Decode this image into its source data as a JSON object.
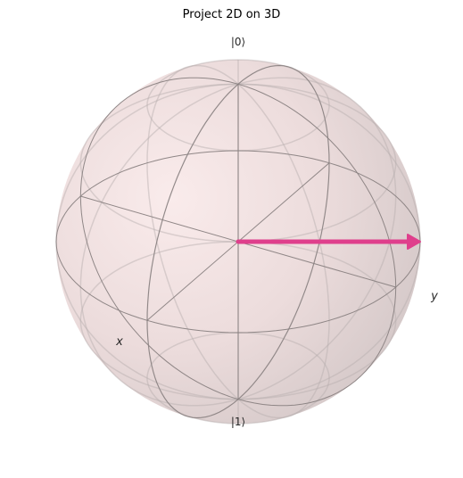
{
  "colors": {
    "sphere_light": "#f9e9e9",
    "sphere_mid": "#ead8d8",
    "sphere_dark": "#cfc2c2",
    "grid_back": "#b5acac",
    "frame": "#8a8282",
    "vector": "#df3f8c"
  },
  "chart_data": {
    "type": "bloch-sphere",
    "title": "Project 2D on 3D",
    "labels": {
      "top": "|0⟩",
      "bottom": "|1⟩",
      "x": "x",
      "y": "y"
    },
    "view": {
      "azimuth_deg": -60,
      "elevation_deg": 30
    },
    "vectors": [
      {
        "name": "state",
        "x": 0.5,
        "y": -0.866,
        "z": 0.0
      }
    ]
  }
}
